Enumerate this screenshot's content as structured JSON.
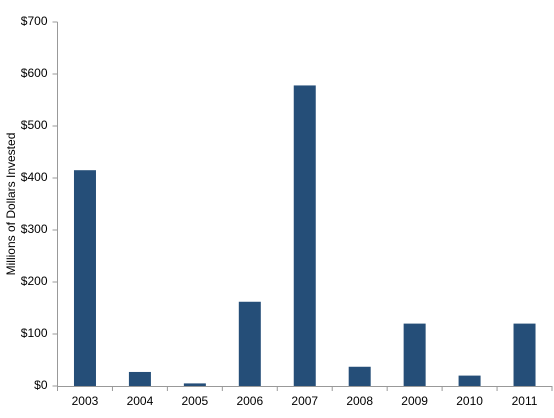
{
  "chart_data": {
    "type": "bar",
    "y_label": "Millions of Dollars Invested",
    "categories": [
      "2003",
      "2004",
      "2005",
      "2006",
      "2007",
      "2008",
      "2009",
      "2010",
      "2011"
    ],
    "values": [
      415,
      27,
      5,
      162,
      578,
      37,
      120,
      20,
      120
    ],
    "color": "#254e78",
    "ylim": [
      0,
      700
    ],
    "yticks": [
      {
        "value": 0,
        "label": "$0"
      },
      {
        "value": 100,
        "label": "$100"
      },
      {
        "value": 200,
        "label": "$200"
      },
      {
        "value": 300,
        "label": "$300"
      },
      {
        "value": 400,
        "label": "$400"
      },
      {
        "value": 500,
        "label": "$500"
      },
      {
        "value": 600,
        "label": "$600"
      },
      {
        "value": 700,
        "label": "$700"
      }
    ],
    "grid": false
  }
}
